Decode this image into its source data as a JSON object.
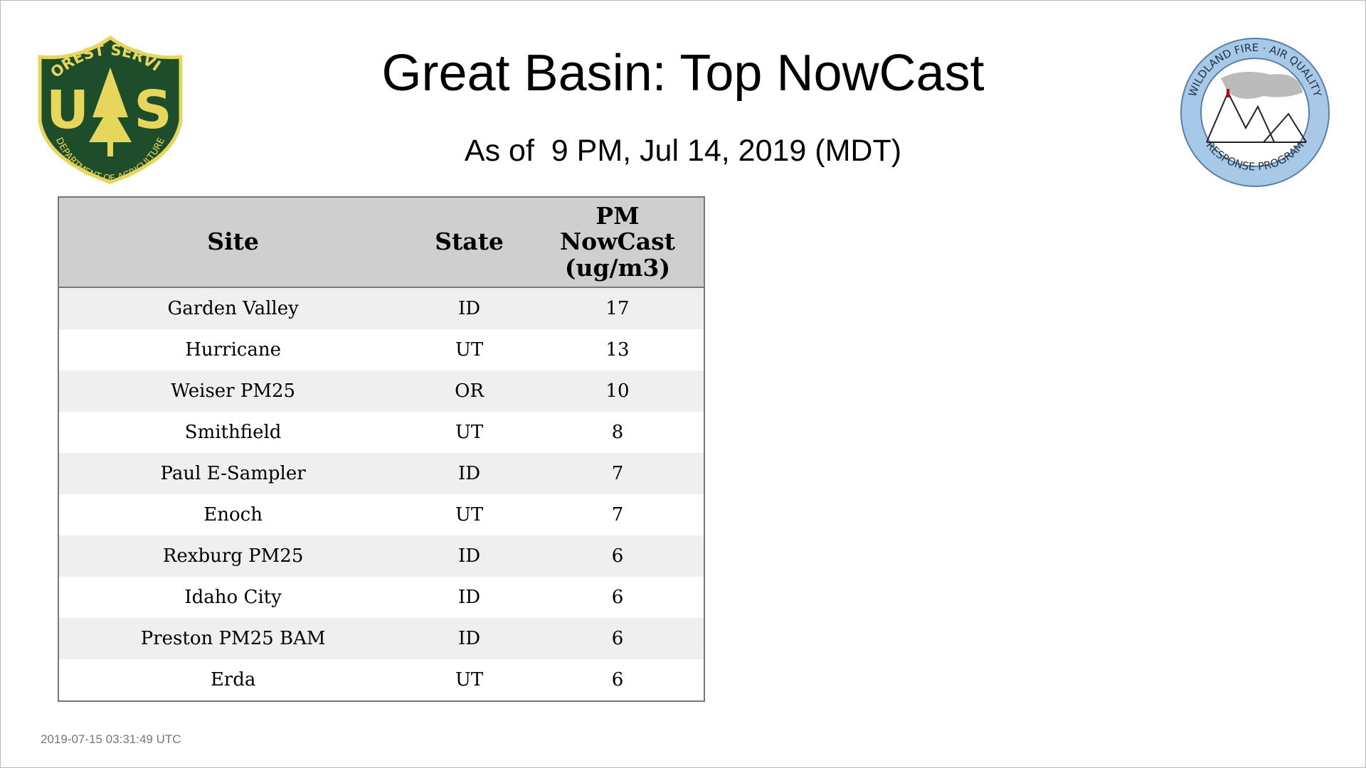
{
  "header": {
    "title": "Great Basin: Top NowCast",
    "subtitle": "As of  9 PM, Jul 14, 2019 (MDT)"
  },
  "logos": {
    "left": {
      "top_text": "FOREST SERVICE",
      "letter_left": "U",
      "letter_right": "S",
      "bottom_text": "DEPARTMENT OF AGRICULTURE"
    },
    "right": {
      "top_text": "WILDLAND FIRE · AIR QUALITY",
      "bottom_text": "RESPONSE PROGRAM"
    }
  },
  "table": {
    "columns": [
      "Site",
      "State",
      "PM NowCast (ug/m3)"
    ],
    "rows": [
      [
        "Garden Valley",
        "ID",
        17
      ],
      [
        "Hurricane",
        "UT",
        13
      ],
      [
        "Weiser PM25",
        "OR",
        10
      ],
      [
        "Smithfield",
        "UT",
        8
      ],
      [
        "Paul E-Sampler",
        "ID",
        7
      ],
      [
        "Enoch",
        "UT",
        7
      ],
      [
        "Rexburg PM25",
        "ID",
        6
      ],
      [
        "Idaho City",
        "ID",
        6
      ],
      [
        "Preston PM25 BAM",
        "ID",
        6
      ],
      [
        "Erda",
        "UT",
        6
      ]
    ]
  },
  "footer": {
    "timestamp": "2019-07-15 03:31:49 UTC"
  }
}
